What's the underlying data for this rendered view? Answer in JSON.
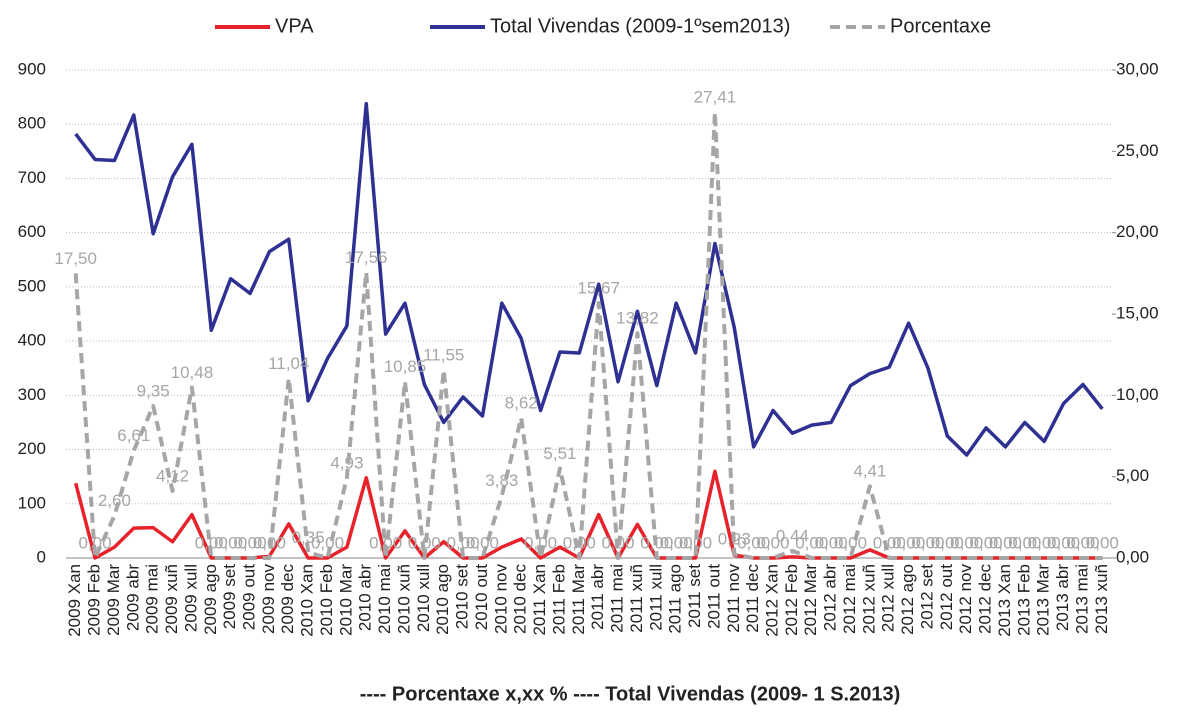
{
  "chart_data": {
    "type": "line",
    "categories": [
      "2009 Xan",
      "2009 Feb",
      "2009 Mar",
      "2009 abr",
      "2009 mai",
      "2009 xuñ",
      "2009 xull",
      "2009 ago",
      "2009 set",
      "2009 out",
      "2009 nov",
      "2009 dec",
      "2010 Xan",
      "2010 Feb",
      "2010 Mar",
      "2010 abr",
      "2010 mai",
      "2010 xuñ",
      "2010 xull",
      "2010 ago",
      "2010 set",
      "2010 out",
      "2010 nov",
      "2010 dec",
      "2011 Xan",
      "2011 Feb",
      "2011 Mar",
      "2011 abr",
      "2011 mai",
      "2011 xuñ",
      "2011 xull",
      "2011 ago",
      "2011 set",
      "2011 out",
      "2011 nov",
      "2011 dec",
      "2012 Xan",
      "2012 Feb",
      "2012 Mar",
      "2012 abr",
      "2012 mai",
      "2012 xuñ",
      "2012 xull",
      "2012 ago",
      "2012 set",
      "2012 out",
      "2012 nov",
      "2012 dec",
      "2013 Xan",
      "2013 Feb",
      "2013 Mar",
      "2013 abr",
      "2013 mai",
      "2013 xuñ"
    ],
    "series": [
      {
        "name": "VPA",
        "color": "#e8222a",
        "values": [
          138,
          0,
          20,
          55,
          56,
          30,
          80,
          0,
          0,
          0,
          3,
          63,
          0,
          0,
          20,
          148,
          0,
          50,
          0,
          30,
          0,
          0,
          20,
          35,
          0,
          20,
          0,
          80,
          0,
          62,
          0,
          0,
          0,
          160,
          5,
          0,
          0,
          2,
          0,
          0,
          0,
          15,
          0,
          0,
          0,
          0,
          0,
          0,
          0,
          0,
          0,
          0,
          0,
          0
        ]
      },
      {
        "name": "Total Vivendas (2009-1ºsem2013)",
        "color": "#2e3192",
        "values": [
          782,
          735,
          733,
          817,
          598,
          703,
          763,
          420,
          515,
          488,
          565,
          588,
          290,
          368,
          428,
          838,
          413,
          470,
          320,
          250,
          297,
          262,
          470,
          405,
          272,
          380,
          378,
          505,
          325,
          455,
          318,
          470,
          378,
          580,
          425,
          205,
          272,
          230,
          245,
          250,
          318,
          340,
          352,
          433,
          350,
          225,
          190,
          240,
          205,
          250,
          215,
          285,
          320,
          275
        ]
      },
      {
        "name": "Porcentaxe",
        "color": "#a6a6a6",
        "dashed": true,
        "axis": "y2",
        "values": [
          17.5,
          0,
          2.6,
          6.61,
          9.35,
          4.12,
          10.48,
          0,
          0,
          0,
          0,
          11.04,
          0.35,
          0,
          4.93,
          17.56,
          0,
          10.85,
          0,
          11.55,
          0,
          0,
          3.83,
          8.62,
          0,
          5.51,
          0,
          15.67,
          0,
          13.82,
          0,
          0,
          0,
          27.41,
          0.23,
          0,
          0,
          0.44,
          0,
          0,
          0,
          4.41,
          0,
          0,
          0,
          0,
          0,
          0,
          0,
          0,
          0,
          0,
          0,
          0
        ],
        "value_labels": [
          "17,50",
          "0,00",
          "2,60",
          "6,61",
          "9,35",
          "4,12",
          "10,48",
          "0,00",
          "0,00",
          "0,00",
          "0,00",
          "11,04",
          "0,35",
          "0,00",
          "4,93",
          "17,56",
          "0,00",
          "10,85",
          "0,00",
          "11,55",
          "0,00",
          "0,00",
          "3,83",
          "8,62",
          "0,00",
          "5,51",
          "0,00",
          "15,67",
          "0,00",
          "13,82",
          "0,00",
          "0,00",
          "0,00",
          "27,41",
          "0,23",
          "0,00",
          "0,00",
          "0,44",
          "0,00",
          "0,00",
          "0,00",
          "4,41",
          "0,00",
          "0,00",
          "0,00",
          "0,00",
          "0,00",
          "0,00",
          "0,00",
          "0,00",
          "0,00",
          "0,00",
          "0,00",
          "0,00"
        ]
      }
    ],
    "ylim": [
      0,
      900
    ],
    "yticks": [
      0,
      100,
      200,
      300,
      400,
      500,
      600,
      700,
      800,
      900
    ],
    "y2lim": [
      0,
      30
    ],
    "y2ticks": [
      {
        "value": 0,
        "label": "0,00"
      },
      {
        "value": 5,
        "label": "5,00"
      },
      {
        "value": 10,
        "label": "10,00"
      },
      {
        "value": 15,
        "label": "15,00"
      },
      {
        "value": 20,
        "label": "20,00"
      },
      {
        "value": 25,
        "label": "25,00"
      },
      {
        "value": 30,
        "label": "30,00"
      }
    ],
    "grid": true,
    "legend": "top",
    "note": "---- Porcentaxe x,xx %        ---- Total Vivendas (2009- 1 S.2013)"
  }
}
